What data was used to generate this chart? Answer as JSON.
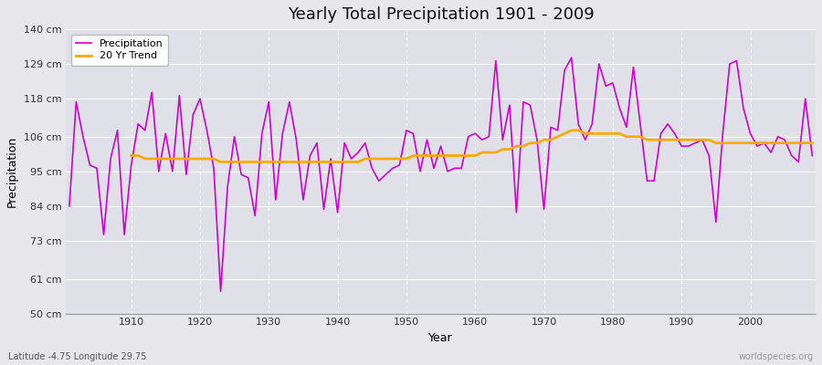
{
  "title": "Yearly Total Precipitation 1901 - 2009",
  "xlabel": "Year",
  "ylabel": "Precipitation",
  "lat_lon_label": "Latitude -4.75 Longitude 29.75",
  "watermark": "worldspecies.org",
  "start_year": 1901,
  "end_year": 2009,
  "ylim": [
    50,
    140
  ],
  "yticks": [
    50,
    61,
    73,
    84,
    95,
    106,
    118,
    129,
    140
  ],
  "ytick_labels": [
    "50 cm",
    "61 cm",
    "73 cm",
    "84 cm",
    "95 cm",
    "106 cm",
    "118 cm",
    "129 cm",
    "140 cm"
  ],
  "xticks": [
    1910,
    1920,
    1930,
    1940,
    1950,
    1960,
    1970,
    1980,
    1990,
    2000
  ],
  "precip_color": "#cc00cc",
  "trend_color": "#ffaa00",
  "bg_color": "#e8e8ec",
  "plot_bg_color": "#e0e0e8",
  "grid_color": "#ffffff",
  "precipitation": [
    84,
    117,
    106,
    97,
    96,
    75,
    99,
    108,
    75,
    97,
    110,
    108,
    120,
    95,
    107,
    95,
    119,
    94,
    113,
    118,
    108,
    96,
    57,
    90,
    106,
    94,
    93,
    81,
    107,
    117,
    86,
    107,
    117,
    105,
    86,
    100,
    104,
    83,
    99,
    82,
    104,
    99,
    101,
    104,
    96,
    92,
    94,
    96,
    97,
    108,
    107,
    95,
    105,
    96,
    103,
    95,
    96,
    96,
    106,
    107,
    105,
    106,
    130,
    105,
    116,
    82,
    117,
    116,
    105,
    83,
    109,
    108,
    127,
    131,
    110,
    105,
    110,
    129,
    122,
    123,
    115,
    109,
    128,
    110,
    92,
    92,
    107,
    110,
    107,
    103,
    103,
    104,
    105,
    100,
    79,
    107,
    129,
    130,
    115,
    107,
    103,
    104,
    101,
    106,
    105,
    100,
    98,
    118,
    100
  ],
  "trend": [
    null,
    null,
    null,
    null,
    null,
    null,
    null,
    null,
    null,
    100,
    100,
    99,
    99,
    99,
    99,
    99,
    99,
    99,
    99,
    99,
    99,
    99,
    98,
    98,
    98,
    98,
    98,
    98,
    98,
    98,
    98,
    98,
    98,
    98,
    98,
    98,
    98,
    98,
    98,
    98,
    98,
    98,
    98,
    99,
    99,
    99,
    99,
    99,
    99,
    99,
    100,
    100,
    100,
    100,
    100,
    100,
    100,
    100,
    100,
    100,
    101,
    101,
    101,
    102,
    102,
    103,
    103,
    104,
    104,
    105,
    105,
    106,
    107,
    108,
    108,
    107,
    107,
    107,
    107,
    107,
    107,
    106,
    106,
    106,
    105,
    105,
    105,
    105,
    105,
    105,
    105,
    105,
    105,
    105,
    104,
    104,
    104,
    104,
    104,
    104,
    104,
    104,
    104,
    104,
    104,
    104,
    104,
    104,
    104
  ]
}
